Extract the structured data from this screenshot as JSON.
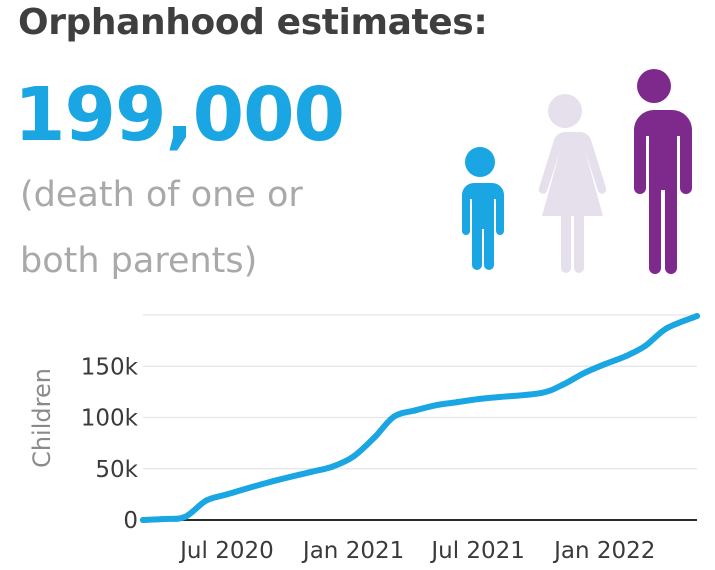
{
  "header": {
    "title": "Orphanhood estimates:",
    "count": "199,000",
    "note": "(death of one or both parents)"
  },
  "figure": {
    "icons": [
      "child-figure-icon",
      "woman-figure-icon",
      "man-figure-icon"
    ],
    "colors": {
      "child": "#1aa6e2",
      "woman": "#e6e0ed",
      "man": "#7d2a8c"
    }
  },
  "chart_data": {
    "type": "line",
    "title": "",
    "xlabel": "",
    "ylabel": "Children",
    "xlim": [
      "2020-03-01",
      "2022-05-15"
    ],
    "ylim": [
      0,
      200000
    ],
    "yticks": [
      0,
      50000,
      100000,
      150000
    ],
    "ytick_labels": [
      "0",
      "50k",
      "100k",
      "150k"
    ],
    "xticks": [
      "2020-07-01",
      "2021-01-01",
      "2021-07-01",
      "2022-01-01"
    ],
    "xtick_labels": [
      "Jul 2020",
      "Jan 2021",
      "Jul 2021",
      "Jan 2022"
    ],
    "grid": true,
    "line_color": "#1aa6e2",
    "series": [
      {
        "x": [
          "2020-03-01",
          "2020-04-01",
          "2020-05-01",
          "2020-06-01",
          "2020-07-01",
          "2020-09-01",
          "2020-11-01",
          "2020-12-01",
          "2021-01-01",
          "2021-02-01",
          "2021-03-01",
          "2021-04-01",
          "2021-05-01",
          "2021-06-01",
          "2021-07-01",
          "2021-08-01",
          "2021-10-01",
          "2021-11-01",
          "2021-12-01",
          "2022-01-01",
          "2022-02-01",
          "2022-03-01",
          "2022-04-01",
          "2022-05-15"
        ],
        "values": [
          0,
          1000,
          3000,
          19000,
          25000,
          37000,
          47000,
          52000,
          62000,
          81000,
          101000,
          107000,
          112000,
          115000,
          118000,
          120000,
          124000,
          132000,
          143000,
          152000,
          160000,
          170000,
          187000,
          199000
        ]
      }
    ]
  }
}
